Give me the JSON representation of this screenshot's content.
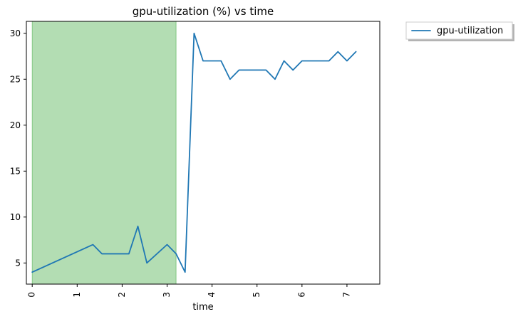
{
  "chart_data": {
    "type": "line",
    "title": "gpu-utilization (%) vs time",
    "xlabel": "time",
    "ylabel": "",
    "xlim": [
      -0.13,
      7.73
    ],
    "ylim": [
      2.7,
      31.3
    ],
    "x_ticks": [
      0,
      1,
      2,
      3,
      4,
      5,
      6,
      7
    ],
    "y_ticks": [
      5,
      10,
      15,
      20,
      25,
      30
    ],
    "grid": false,
    "legend": {
      "placement": "outside-top-right",
      "entries": [
        {
          "label": "gpu-utilization",
          "color": "#1f77b4"
        }
      ]
    },
    "shaded_region": {
      "x_start": 0.0,
      "x_end": 3.2,
      "color": "#2ca02c",
      "opacity": 0.36
    },
    "series": [
      {
        "name": "gpu-utilization",
        "color": "#1f77b4",
        "x": [
          0.0,
          1.35,
          1.55,
          2.15,
          2.35,
          2.55,
          3.0,
          3.2,
          3.4,
          3.6,
          3.8,
          4.2,
          4.4,
          4.6,
          5.2,
          5.4,
          5.6,
          5.8,
          6.0,
          6.6,
          6.8,
          7.0,
          7.2
        ],
        "y": [
          4,
          7,
          6,
          6,
          9,
          5,
          7,
          6,
          4,
          30,
          27,
          27,
          25,
          26,
          26,
          25,
          27,
          26,
          27,
          27,
          28,
          27,
          28
        ]
      }
    ]
  }
}
